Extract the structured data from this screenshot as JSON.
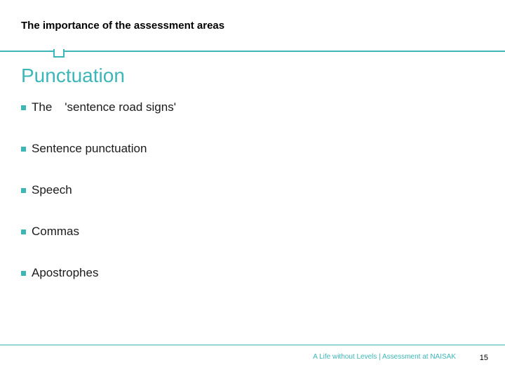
{
  "header": {
    "title": "The importance of the assessment areas"
  },
  "heading": "Punctuation",
  "bullets": [
    {
      "prefix": "The",
      "rest": "'sentence road signs'"
    },
    {
      "text": "Sentence punctuation"
    },
    {
      "text": "Speech"
    },
    {
      "text": "Commas"
    },
    {
      "text": "Apostrophes"
    }
  ],
  "footer": {
    "text": "A Life without Levels | Assessment at NAISAK",
    "page": "15"
  },
  "colors": {
    "accent": "#3db6b8",
    "text": "#1a1a1a",
    "footer_text": "#3db6b8"
  }
}
